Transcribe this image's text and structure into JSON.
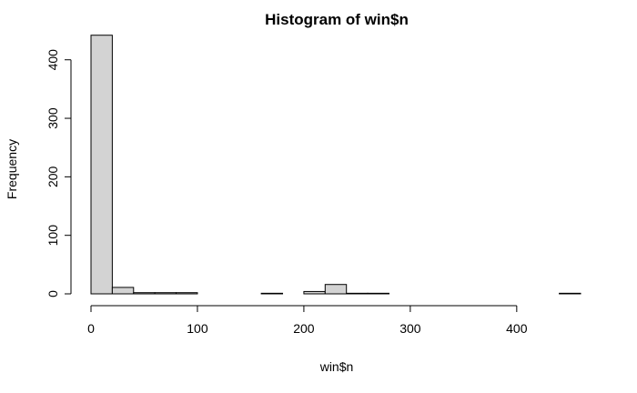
{
  "chart_data": {
    "type": "bar",
    "title": "Histogram of win$n",
    "xlabel": "win$n",
    "ylabel": "Frequency",
    "xlim": [
      0,
      460
    ],
    "ylim": [
      0,
      440
    ],
    "x_ticks": [
      0,
      100,
      200,
      300,
      400
    ],
    "y_ticks": [
      0,
      100,
      200,
      300,
      400
    ],
    "bin_width": 20,
    "bins": [
      {
        "start": 0,
        "end": 20,
        "count": 442
      },
      {
        "start": 20,
        "end": 40,
        "count": 11
      },
      {
        "start": 40,
        "end": 60,
        "count": 2
      },
      {
        "start": 60,
        "end": 80,
        "count": 2
      },
      {
        "start": 80,
        "end": 100,
        "count": 2
      },
      {
        "start": 100,
        "end": 120,
        "count": 0
      },
      {
        "start": 120,
        "end": 140,
        "count": 0
      },
      {
        "start": 140,
        "end": 160,
        "count": 0
      },
      {
        "start": 160,
        "end": 180,
        "count": 1
      },
      {
        "start": 180,
        "end": 200,
        "count": 0
      },
      {
        "start": 200,
        "end": 220,
        "count": 4
      },
      {
        "start": 220,
        "end": 240,
        "count": 16
      },
      {
        "start": 240,
        "end": 260,
        "count": 1
      },
      {
        "start": 260,
        "end": 280,
        "count": 1
      },
      {
        "start": 280,
        "end": 300,
        "count": 0
      },
      {
        "start": 300,
        "end": 320,
        "count": 0
      },
      {
        "start": 320,
        "end": 340,
        "count": 0
      },
      {
        "start": 340,
        "end": 360,
        "count": 0
      },
      {
        "start": 360,
        "end": 380,
        "count": 0
      },
      {
        "start": 380,
        "end": 400,
        "count": 0
      },
      {
        "start": 400,
        "end": 420,
        "count": 0
      },
      {
        "start": 420,
        "end": 440,
        "count": 0
      },
      {
        "start": 440,
        "end": 460,
        "count": 1
      }
    ],
    "grid": false,
    "legend": "none",
    "colors": {
      "bar_fill": "#d3d3d3",
      "bar_stroke": "#000000"
    }
  }
}
